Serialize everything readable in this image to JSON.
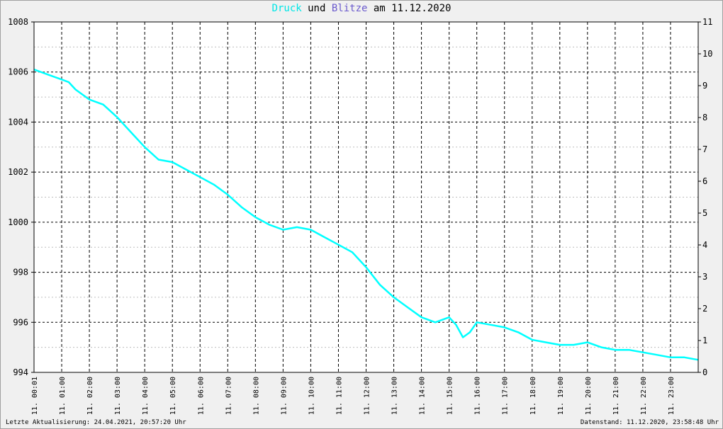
{
  "title": {
    "druck": "Druck",
    "und": "und",
    "blitze": "Blitze",
    "am": "am",
    "date": "11.12.2020"
  },
  "colors": {
    "pressure": "#00ffff",
    "blitze": "#6a5acd",
    "grid": "#000000",
    "minor_grid": "#bdbdbd",
    "background": "#ffffff"
  },
  "footer": {
    "left": "Letzte Aktualisierung: 24.04.2021, 20:57:20 Uhr",
    "right": "Datenstand: 11.12.2020, 23:58:48 Uhr"
  },
  "chart_data": {
    "type": "line",
    "title": "Druck und Blitze am 11.12.2020",
    "x_unit": "hours",
    "xlim": [
      0,
      24
    ],
    "x_ticks": [
      "11. 00:01",
      "11. 01:00",
      "11. 02:00",
      "11. 03:00",
      "11. 04:00",
      "11. 05:00",
      "11. 06:00",
      "11. 07:00",
      "11. 08:00",
      "11. 09:00",
      "11. 10:00",
      "11. 11:00",
      "11. 12:00",
      "11. 13:00",
      "11. 14:00",
      "11. 15:00",
      "11. 16:00",
      "11. 17:00",
      "11. 18:00",
      "11. 19:00",
      "11. 20:00",
      "11. 21:00",
      "11. 22:00",
      "11. 23:00"
    ],
    "y_left": {
      "lim": [
        994,
        1008
      ],
      "ticks": [
        "994",
        "996",
        "998",
        "1000",
        "1002",
        "1004",
        "1006",
        "1008"
      ]
    },
    "y_right": {
      "lim": [
        0,
        11
      ],
      "ticks": [
        "0",
        "1",
        "2",
        "3",
        "4",
        "5",
        "6",
        "7",
        "8",
        "9",
        "10",
        "11"
      ]
    },
    "grid": true,
    "series": [
      {
        "name": "Druck",
        "axis": "left",
        "x": [
          0,
          0.5,
          1,
          1.25,
          1.5,
          2,
          2.5,
          3,
          3.5,
          4,
          4.5,
          5,
          5.5,
          6,
          6.5,
          7,
          7.5,
          8,
          8.5,
          9,
          9.5,
          10,
          10.5,
          11,
          11.5,
          12,
          12.5,
          13,
          13.5,
          14,
          14.5,
          15,
          15.25,
          15.5,
          15.75,
          16,
          16.5,
          17,
          17.5,
          18,
          18.5,
          19,
          19.5,
          20,
          20.5,
          21,
          21.5,
          22,
          22.5,
          23,
          23.5,
          24
        ],
        "values": [
          1006.1,
          1005.9,
          1005.7,
          1005.6,
          1005.3,
          1004.9,
          1004.7,
          1004.2,
          1003.6,
          1003.0,
          1002.5,
          1002.4,
          1002.1,
          1001.8,
          1001.5,
          1001.1,
          1000.6,
          1000.2,
          999.9,
          999.7,
          999.8,
          999.7,
          999.4,
          999.1,
          998.8,
          998.2,
          997.5,
          997.0,
          996.6,
          996.2,
          996.0,
          996.2,
          995.9,
          995.4,
          995.6,
          996.0,
          995.9,
          995.8,
          995.6,
          995.3,
          995.2,
          995.1,
          995.1,
          995.2,
          995.0,
          994.9,
          994.9,
          994.8,
          994.7,
          994.6,
          994.6,
          994.5
        ]
      }
    ]
  }
}
